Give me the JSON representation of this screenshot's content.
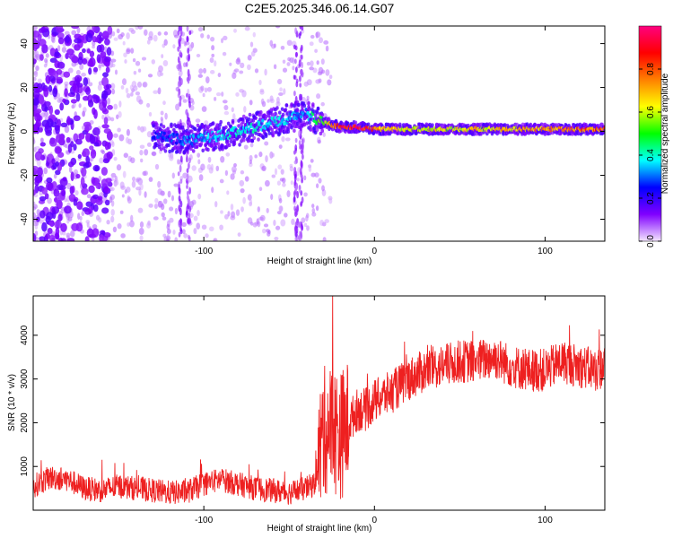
{
  "chart_data": [
    {
      "type": "heatmap",
      "title": "C2E5.2025.346.06.14.G07",
      "xlabel": "Height of straight line (km)",
      "ylabel": "Frequency (Hz)",
      "xlim": [
        -200,
        135
      ],
      "ylim": [
        -50,
        48
      ],
      "x_ticks": [
        -100,
        0,
        100
      ],
      "x_tick_labels": [
        "-100",
        "0",
        "100"
      ],
      "y_ticks": [
        -40,
        -20,
        0,
        20,
        40
      ],
      "y_tick_labels": [
        "-40",
        "-20",
        "0",
        "20",
        "40"
      ],
      "colorbar": {
        "label": "Normalized spectral amplitude",
        "range": [
          0,
          1
        ],
        "ticks": [
          0.0,
          0.2,
          0.4,
          0.6,
          0.8
        ],
        "tick_labels": [
          "0.0",
          "0.2",
          "0.4",
          "0.6",
          "0.8"
        ],
        "colors": [
          "#f4e6ff",
          "#8000ff",
          "#0000ff",
          "#00ffff",
          "#00ff00",
          "#ffff00",
          "#ff8000",
          "#ff0000",
          "#ff0080"
        ]
      },
      "ridge": {
        "description_points_x": [
          -130,
          -110,
          -90,
          -70,
          -50,
          -40,
          -30,
          -20,
          -10,
          0,
          20,
          60,
          100,
          135
        ],
        "center_freq": [
          -2,
          -4,
          -2,
          2,
          6,
          8,
          4,
          2,
          2,
          1,
          1,
          1,
          1,
          1
        ],
        "amplitude": [
          0.25,
          0.3,
          0.35,
          0.4,
          0.35,
          0.3,
          0.55,
          0.85,
          0.95,
          0.75,
          0.6,
          0.65,
          0.7,
          0.8
        ]
      }
    },
    {
      "type": "line",
      "title": "",
      "xlabel": "Height of straight line (km)",
      "ylabel": "SNR (10 * v/v)",
      "xlim": [
        -200,
        135
      ],
      "ylim": [
        0,
        4900
      ],
      "x_ticks": [
        -100,
        0,
        100
      ],
      "x_tick_labels": [
        "-100",
        "0",
        "100"
      ],
      "y_ticks": [
        1000,
        2000,
        3000,
        4000
      ],
      "y_tick_labels": [
        "1000",
        "2000",
        "3000",
        "4000"
      ],
      "series": [
        {
          "name": "SNR",
          "color": "#ee2020",
          "x": [
            -200,
            -190,
            -180,
            -170,
            -160,
            -150,
            -140,
            -130,
            -120,
            -110,
            -100,
            -90,
            -80,
            -70,
            -60,
            -50,
            -40,
            -35,
            -30,
            -25,
            -20,
            -15,
            -10,
            -5,
            0,
            10,
            20,
            30,
            40,
            50,
            60,
            70,
            80,
            90,
            100,
            110,
            120,
            130,
            135
          ],
          "values": [
            550,
            750,
            700,
            500,
            450,
            550,
            500,
            450,
            400,
            420,
            600,
            700,
            600,
            500,
            450,
            400,
            500,
            600,
            1800,
            1900,
            1700,
            2000,
            2300,
            2300,
            2500,
            2700,
            3000,
            3200,
            3300,
            3400,
            3400,
            3500,
            3300,
            3200,
            3200,
            3400,
            3300,
            3200,
            3300
          ]
        }
      ]
    }
  ]
}
